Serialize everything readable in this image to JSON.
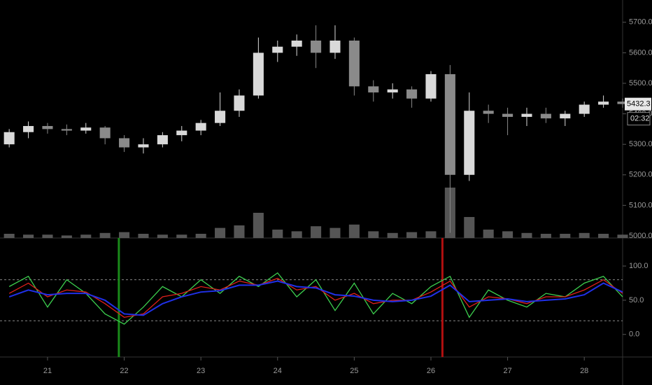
{
  "chart_data": [
    {
      "type": "candlestick",
      "x": [
        20.5,
        20.75,
        21,
        21.25,
        21.5,
        21.75,
        22,
        22.25,
        22.5,
        22.75,
        23,
        23.25,
        23.5,
        23.75,
        24,
        24.25,
        24.5,
        24.75,
        25,
        25.25,
        25.5,
        25.75,
        26,
        26.25,
        26.5,
        26.75,
        27,
        27.25,
        27.5,
        27.75,
        28,
        28.25,
        28.5
      ],
      "open": [
        5300,
        5340,
        5360,
        5350,
        5345,
        5355,
        5320,
        5290,
        5300,
        5330,
        5345,
        5370,
        5410,
        5460,
        5600,
        5620,
        5640,
        5600,
        5640,
        5490,
        5470,
        5480,
        5450,
        5530,
        5200,
        5410,
        5400,
        5390,
        5400,
        5385,
        5400,
        5430,
        5440
      ],
      "high": [
        5350,
        5375,
        5370,
        5365,
        5370,
        5360,
        5330,
        5320,
        5340,
        5360,
        5380,
        5470,
        5480,
        5650,
        5640,
        5660,
        5690,
        5690,
        5650,
        5510,
        5500,
        5490,
        5540,
        5560,
        5470,
        5430,
        5420,
        5420,
        5420,
        5410,
        5440,
        5460,
        5450
      ],
      "low": [
        5290,
        5320,
        5335,
        5330,
        5335,
        5300,
        5275,
        5270,
        5290,
        5310,
        5330,
        5360,
        5390,
        5450,
        5570,
        5590,
        5550,
        5580,
        5460,
        5440,
        5450,
        5420,
        5440,
        5010,
        5180,
        5370,
        5330,
        5360,
        5370,
        5360,
        5390,
        5420,
        5420
      ],
      "close": [
        5340,
        5360,
        5350,
        5345,
        5355,
        5320,
        5290,
        5300,
        5330,
        5345,
        5370,
        5410,
        5460,
        5600,
        5620,
        5640,
        5600,
        5640,
        5490,
        5470,
        5480,
        5450,
        5530,
        5200,
        5410,
        5400,
        5390,
        5400,
        5385,
        5400,
        5430,
        5440,
        5432
      ],
      "volume": [
        5,
        4,
        4,
        3,
        4,
        6,
        7,
        5,
        4,
        4,
        5,
        12,
        15,
        30,
        10,
        8,
        14,
        12,
        16,
        8,
        6,
        7,
        8,
        60,
        25,
        10,
        8,
        6,
        5,
        5,
        6,
        5,
        4
      ],
      "vlim": [
        0,
        100
      ],
      "up_color": "#d9d9d9",
      "down_color": "#8a8a8a",
      "volume_color": "#555555",
      "xlim": [
        20.38,
        28.5
      ],
      "ylim": [
        4993,
        5773
      ],
      "yticks": [
        {
          "value": 5000,
          "label": "5000.0"
        },
        {
          "value": 5100,
          "label": "5100.0"
        },
        {
          "value": 5200,
          "label": "5200.0"
        },
        {
          "value": 5300,
          "label": "5300.0"
        },
        {
          "value": 5400,
          "label": "5400.0"
        },
        {
          "value": 5500,
          "label": "5500.0"
        },
        {
          "value": 5600,
          "label": "5600.0"
        },
        {
          "value": 5700,
          "label": "5700.0"
        }
      ],
      "last_price_label": "5432.3",
      "countdown": "02:32"
    },
    {
      "type": "line",
      "x": [
        20.5,
        20.75,
        21,
        21.25,
        21.5,
        21.75,
        22,
        22.25,
        22.5,
        22.75,
        23,
        23.25,
        23.5,
        23.75,
        24,
        24.25,
        24.5,
        24.75,
        25,
        25.25,
        25.5,
        25.75,
        26,
        26.25,
        26.5,
        26.75,
        27,
        27.25,
        27.5,
        27.75,
        28,
        28.25,
        28.5
      ],
      "series": [
        {
          "color": "#3ccf4e",
          "values": [
            70,
            85,
            40,
            80,
            60,
            30,
            15,
            40,
            70,
            55,
            80,
            60,
            85,
            70,
            90,
            55,
            80,
            35,
            75,
            30,
            60,
            45,
            70,
            85,
            25,
            65,
            50,
            40,
            60,
            55,
            75,
            85,
            55
          ]
        },
        {
          "color": "#e0201b",
          "values": [
            60,
            75,
            55,
            65,
            62,
            45,
            25,
            30,
            55,
            60,
            70,
            65,
            78,
            72,
            82,
            65,
            70,
            50,
            60,
            45,
            50,
            50,
            62,
            78,
            40,
            55,
            52,
            45,
            55,
            55,
            65,
            80,
            60
          ]
        },
        {
          "color": "#2030e8",
          "values": [
            55,
            65,
            58,
            60,
            60,
            50,
            30,
            28,
            45,
            55,
            62,
            64,
            72,
            72,
            78,
            70,
            68,
            58,
            56,
            50,
            48,
            50,
            56,
            72,
            48,
            50,
            52,
            48,
            50,
            52,
            58,
            75,
            62
          ]
        }
      ],
      "levels": [
        80,
        20
      ],
      "vlines": [
        {
          "x": 21.93,
          "color": "#1a8a1a"
        },
        {
          "x": 26.15,
          "color": "#b01010"
        }
      ],
      "xlim": [
        20.38,
        28.5
      ],
      "ylim": [
        -33,
        141
      ],
      "yticks": [
        {
          "value": 0,
          "label": "0.0"
        },
        {
          "value": 50,
          "label": "50.0"
        },
        {
          "value": 100,
          "label": "100.0"
        }
      ],
      "xticks": [
        21,
        22,
        23,
        24,
        25,
        26,
        27,
        28
      ]
    }
  ]
}
